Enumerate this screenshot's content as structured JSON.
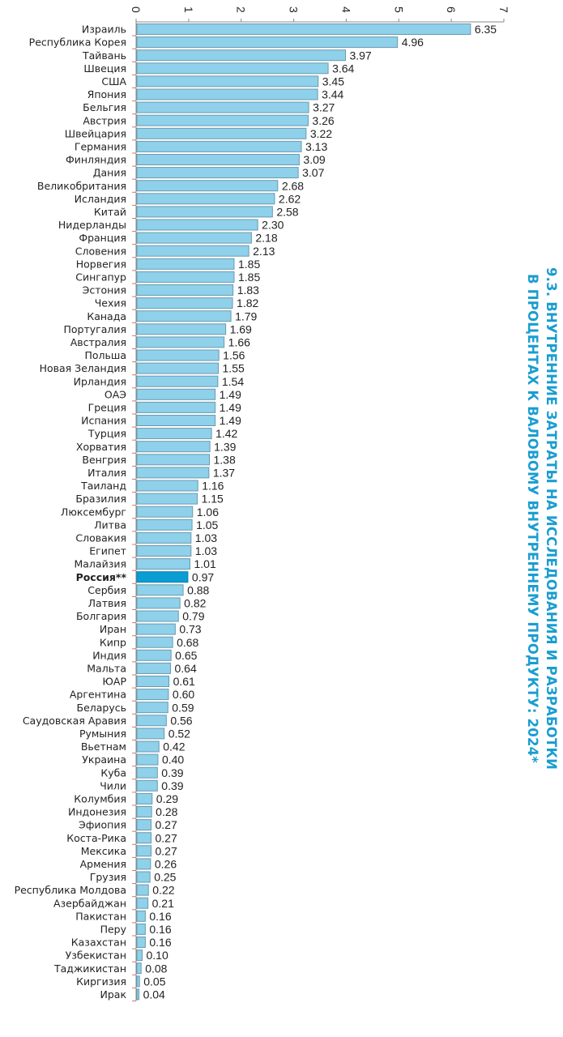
{
  "chart_data": {
    "type": "bar",
    "orientation": "horizontal",
    "title": "9.3. ВНУТРЕННИЕ ЗАТРАТЫ НА ИССЛЕДОВАНИЯ И РАЗРАБОТКИ В ПРОЦЕНТАХ К ВАЛОВОМУ ВНУТРЕННЕМУ ПРОДУКТУ: 2024*",
    "title_lines": [
      "9.3. ВНУТРЕННИЕ ЗАТРАТЫ НА ИССЛЕДОВАНИЯ И РАЗРАБОТКИ",
      "В ПРОЦЕНТАХ К ВАЛОВОМУ ВНУТРЕННЕМУ ПРОДУКТУ: 2024*"
    ],
    "xlabel": "",
    "ylabel": "",
    "xlim": [
      0,
      7
    ],
    "xticks": [
      "0",
      "1",
      "2",
      "3",
      "4",
      "5",
      "6",
      "7"
    ],
    "grid": false,
    "colors": {
      "bar": "#8fd0ea",
      "bar_stroke": "#6a9aae",
      "highlight": "#0a9dd3",
      "title": "#1a9dd0"
    },
    "highlight": "Россия**",
    "categories": [
      "Израиль",
      "Республика Корея",
      "Тайвань",
      "Швеция",
      "США",
      "Япония",
      "Бельгия",
      "Австрия",
      "Швейцария",
      "Германия",
      "Финляндия",
      "Дания",
      "Великобритания",
      "Исландия",
      "Китай",
      "Нидерланды",
      "Франция",
      "Словения",
      "Норвегия",
      "Сингапур",
      "Эстония",
      "Чехия",
      "Канада",
      "Португалия",
      "Австралия",
      "Польша",
      "Новая Зеландия",
      "Ирландия",
      "ОАЭ",
      "Греция",
      "Испания",
      "Турция",
      "Хорватия",
      "Венгрия",
      "Италия",
      "Таиланд",
      "Бразилия",
      "Люксембург",
      "Литва",
      "Словакия",
      "Египет",
      "Малайзия",
      "Россия**",
      "Сербия",
      "Латвия",
      "Болгария",
      "Иран",
      "Кипр",
      "Индия",
      "Мальта",
      "ЮАР",
      "Аргентина",
      "Беларусь",
      "Саудовская Аравия",
      "Румыния",
      "Вьетнам",
      "Украина",
      "Куба",
      "Чили",
      "Колумбия",
      "Индонезия",
      "Эфиопия",
      "Коста-Рика",
      "Мексика",
      "Армения",
      "Грузия",
      "Республика Молдова",
      "Азербайджан",
      "Пакистан",
      "Перу",
      "Казахстан",
      "Узбекистан",
      "Таджикистан",
      "Киргизия",
      "Ирак"
    ],
    "values": [
      6.35,
      4.96,
      3.97,
      3.64,
      3.45,
      3.44,
      3.27,
      3.26,
      3.22,
      3.13,
      3.09,
      3.07,
      2.68,
      2.62,
      2.58,
      2.3,
      2.18,
      2.13,
      1.85,
      1.85,
      1.83,
      1.82,
      1.79,
      1.69,
      1.66,
      1.56,
      1.55,
      1.54,
      1.49,
      1.49,
      1.49,
      1.42,
      1.39,
      1.38,
      1.37,
      1.16,
      1.15,
      1.06,
      1.05,
      1.03,
      1.03,
      1.01,
      0.97,
      0.88,
      0.82,
      0.79,
      0.73,
      0.68,
      0.65,
      0.64,
      0.61,
      0.6,
      0.59,
      0.56,
      0.52,
      0.42,
      0.4,
      0.39,
      0.39,
      0.29,
      0.28,
      0.27,
      0.27,
      0.27,
      0.26,
      0.25,
      0.22,
      0.21,
      0.16,
      0.16,
      0.16,
      0.1,
      0.08,
      0.05,
      0.04
    ],
    "value_labels": [
      "6.35",
      "4.96",
      "3.97",
      "3.64",
      "3.45",
      "3.44",
      "3.27",
      "3.26",
      "3.22",
      "3.13",
      "3.09",
      "3.07",
      "2.68",
      "2.62",
      "2.58",
      "2.30",
      "2.18",
      "2.13",
      "1.85",
      "1.85",
      "1.83",
      "1.82",
      "1.79",
      "1.69",
      "1.66",
      "1.56",
      "1.55",
      "1.54",
      "1.49",
      "1.49",
      "1.49",
      "1.42",
      "1.39",
      "1.38",
      "1.37",
      "1.16",
      "1.15",
      "1.06",
      "1.05",
      "1.03",
      "1.03",
      "1.01",
      "0.97",
      "0.88",
      "0.82",
      "0.79",
      "0.73",
      "0.68",
      "0.65",
      "0.64",
      "0.61",
      "0.60",
      "0.59",
      "0.56",
      "0.52",
      "0.42",
      "0.40",
      "0.39",
      "0.39",
      "0.29",
      "0.28",
      "0.27",
      "0.27",
      "0.27",
      "0.26",
      "0.25",
      "0.22",
      "0.21",
      "0.16",
      "0.16",
      "0.16",
      "0.10",
      "0.08",
      "0.05",
      "0.04"
    ]
  }
}
